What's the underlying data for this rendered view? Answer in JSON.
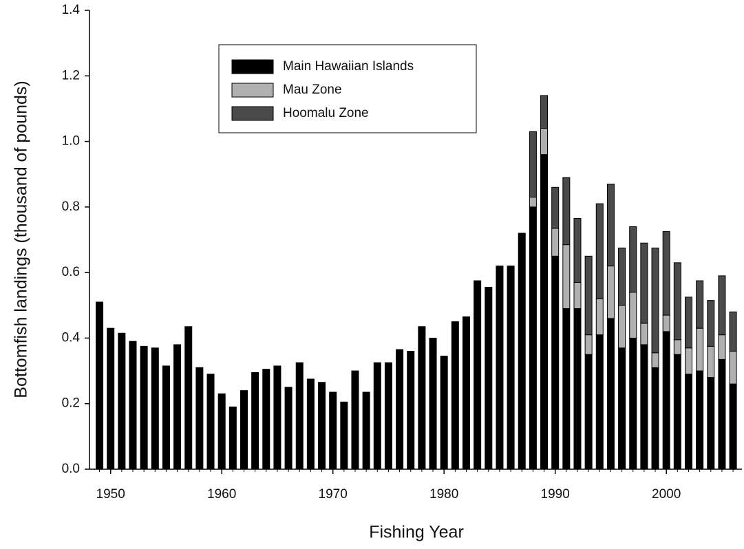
{
  "chart_data": {
    "type": "stacked-bar",
    "x_label": "Fishing Year",
    "y_label": "Bottomfish landings (thousand of pounds)",
    "x": [
      1949,
      1950,
      1951,
      1952,
      1953,
      1954,
      1955,
      1956,
      1957,
      1958,
      1959,
      1960,
      1961,
      1962,
      1963,
      1964,
      1965,
      1966,
      1967,
      1968,
      1969,
      1970,
      1971,
      1972,
      1973,
      1974,
      1975,
      1976,
      1977,
      1978,
      1979,
      1980,
      1981,
      1982,
      1983,
      1984,
      1985,
      1986,
      1987,
      1988,
      1989,
      1990,
      1991,
      1992,
      1993,
      1994,
      1995,
      1996,
      1997,
      1998,
      1999,
      2000,
      2001,
      2002,
      2003,
      2004,
      2005,
      2006
    ],
    "series": [
      {
        "name": "Main Hawaiian Islands",
        "color": "#000000",
        "values": [
          0.51,
          0.43,
          0.415,
          0.39,
          0.375,
          0.37,
          0.315,
          0.38,
          0.435,
          0.31,
          0.29,
          0.23,
          0.19,
          0.24,
          0.295,
          0.305,
          0.315,
          0.25,
          0.325,
          0.275,
          0.265,
          0.235,
          0.205,
          0.3,
          0.235,
          0.325,
          0.325,
          0.365,
          0.36,
          0.435,
          0.4,
          0.345,
          0.45,
          0.465,
          0.575,
          0.555,
          0.62,
          0.62,
          0.72,
          0.8,
          0.96,
          0.65,
          0.49,
          0.49,
          0.35,
          0.41,
          0.46,
          0.37,
          0.4,
          0.38,
          0.31,
          0.42,
          0.35,
          0.29,
          0.3,
          0.28,
          0.335,
          0.26
        ]
      },
      {
        "name": "Mau Zone",
        "color": "#b0b0b0",
        "values": [
          null,
          null,
          null,
          null,
          null,
          null,
          null,
          null,
          null,
          null,
          null,
          null,
          null,
          null,
          null,
          null,
          null,
          null,
          null,
          null,
          null,
          null,
          null,
          null,
          null,
          null,
          null,
          null,
          null,
          null,
          null,
          null,
          null,
          null,
          null,
          null,
          null,
          null,
          null,
          0.03,
          0.08,
          0.085,
          0.195,
          0.08,
          0.06,
          0.11,
          0.16,
          0.13,
          0.14,
          0.065,
          0.045,
          0.05,
          0.045,
          0.08,
          0.13,
          0.095,
          0.075,
          0.1
        ]
      },
      {
        "name": "Hoomalu Zone",
        "color": "#4a4a4a",
        "values": [
          null,
          null,
          null,
          null,
          null,
          null,
          null,
          null,
          null,
          null,
          null,
          null,
          null,
          null,
          null,
          null,
          null,
          null,
          null,
          null,
          null,
          null,
          null,
          null,
          null,
          null,
          null,
          null,
          null,
          null,
          null,
          null,
          null,
          null,
          null,
          null,
          null,
          null,
          null,
          0.2,
          0.1,
          0.125,
          0.205,
          0.195,
          0.24,
          0.29,
          0.25,
          0.175,
          0.2,
          0.245,
          0.32,
          0.255,
          0.235,
          0.155,
          0.145,
          0.14,
          0.18,
          0.12
        ]
      }
    ],
    "xlim": [
      1948.1,
      2006.8
    ],
    "xticks": [
      1950,
      1960,
      1970,
      1980,
      1990,
      2000
    ],
    "ylim": [
      0,
      1.4
    ],
    "yticks": [
      {
        "value": 0,
        "label": "0.0"
      },
      0.2,
      0.4,
      0.6,
      0.8,
      {
        "value": 1,
        "label": "1.0"
      },
      1.2,
      1.4
    ]
  }
}
